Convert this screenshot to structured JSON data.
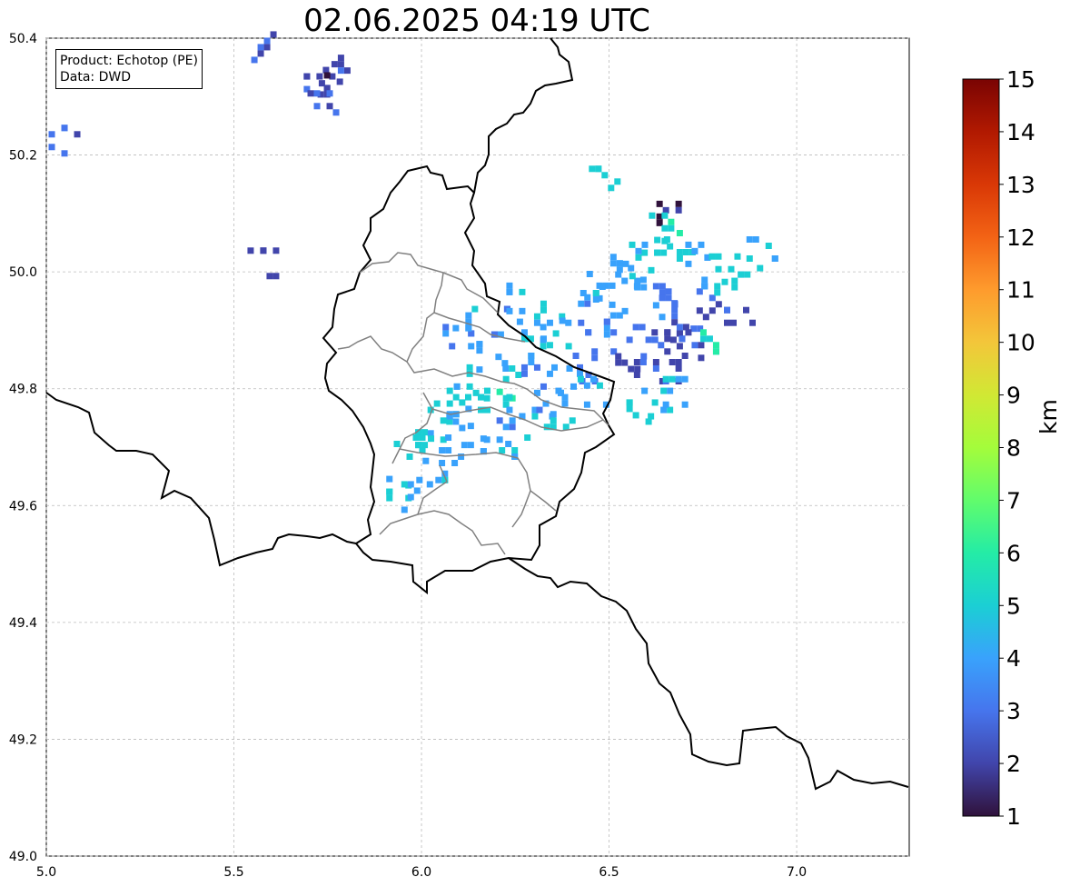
{
  "map": {
    "title": "02.06.2025 04:19 UTC",
    "info": {
      "product": "Product: Echotop (PE)",
      "source": "Data: DWD"
    },
    "x_ticks": [
      "5.0",
      "5.5",
      "6.0",
      "6.5",
      "7.0"
    ],
    "y_ticks": [
      "50.4",
      "50.2",
      "50.0",
      "49.8",
      "49.6",
      "49.4",
      "49.2",
      "49.0"
    ],
    "extent": {
      "lon_min": 5.0,
      "lon_max": 7.3,
      "lat_min": 49.0,
      "lat_max": 50.4
    },
    "gridlines": true,
    "colorbar": {
      "label": "km",
      "ticks": [
        "1",
        "2",
        "3",
        "4",
        "5",
        "6",
        "7",
        "8",
        "9",
        "10",
        "11",
        "12",
        "13",
        "14",
        "15"
      ],
      "min": 1,
      "max": 15,
      "colors": [
        "#30123b",
        "#4145ab",
        "#4675ed",
        "#39a2fc",
        "#1bcfd4",
        "#24eca6",
        "#61fc6c",
        "#a4fc3b",
        "#d1e834",
        "#f3c63a",
        "#fe9b2d",
        "#f36315",
        "#d93806",
        "#b11901",
        "#7a0403"
      ]
    },
    "radar_cells": [
      {
        "lon": 5.58,
        "lat": 50.39,
        "km": 2.5
      },
      {
        "lon": 5.72,
        "lat": 50.34,
        "km": 2.2
      },
      {
        "lon": 5.76,
        "lat": 50.35,
        "km": 2.4
      },
      {
        "lon": 5.74,
        "lat": 50.32,
        "km": 2.0
      },
      {
        "lon": 5.73,
        "lat": 50.3,
        "km": 2.3
      },
      {
        "lon": 5.04,
        "lat": 50.23,
        "km": 3.0
      },
      {
        "lon": 5.57,
        "lat": 50.02,
        "km": 2.4
      },
      {
        "lon": 6.66,
        "lat": 50.1,
        "km": 1.2
      },
      {
        "lon": 6.48,
        "lat": 50.16,
        "km": 4.9
      },
      {
        "lon": 6.62,
        "lat": 50.06,
        "km": 4.5
      },
      {
        "lon": 6.68,
        "lat": 50.05,
        "km": 5.0
      },
      {
        "lon": 6.72,
        "lat": 50.03,
        "km": 4.3
      },
      {
        "lon": 6.8,
        "lat": 50.01,
        "km": 5.2
      },
      {
        "lon": 6.86,
        "lat": 49.99,
        "km": 4.8
      },
      {
        "lon": 6.9,
        "lat": 50.05,
        "km": 4.6
      },
      {
        "lon": 6.55,
        "lat": 49.99,
        "km": 4.0
      },
      {
        "lon": 6.6,
        "lat": 49.97,
        "km": 3.8
      },
      {
        "lon": 6.65,
        "lat": 49.95,
        "km": 3.2
      },
      {
        "lon": 6.7,
        "lat": 49.93,
        "km": 2.6
      },
      {
        "lon": 6.75,
        "lat": 49.95,
        "km": 2.9
      },
      {
        "lon": 6.78,
        "lat": 49.97,
        "km": 4.4
      },
      {
        "lon": 6.68,
        "lat": 49.9,
        "km": 2.2
      },
      {
        "lon": 6.63,
        "lat": 49.88,
        "km": 2.5
      },
      {
        "lon": 6.58,
        "lat": 49.9,
        "km": 3.0
      },
      {
        "lon": 6.52,
        "lat": 49.92,
        "km": 3.6
      },
      {
        "lon": 6.47,
        "lat": 49.88,
        "km": 3.3
      },
      {
        "lon": 6.55,
        "lat": 49.85,
        "km": 2.1
      },
      {
        "lon": 6.6,
        "lat": 49.84,
        "km": 2.4
      },
      {
        "lon": 6.66,
        "lat": 49.84,
        "km": 2.0
      },
      {
        "lon": 6.72,
        "lat": 49.88,
        "km": 2.7
      },
      {
        "lon": 6.5,
        "lat": 49.96,
        "km": 4.1
      },
      {
        "lon": 6.44,
        "lat": 49.98,
        "km": 4.2
      },
      {
        "lon": 6.4,
        "lat": 49.94,
        "km": 4.0
      },
      {
        "lon": 6.35,
        "lat": 49.9,
        "km": 4.3
      },
      {
        "lon": 6.3,
        "lat": 49.88,
        "km": 4.6
      },
      {
        "lon": 6.25,
        "lat": 49.84,
        "km": 4.8
      },
      {
        "lon": 6.2,
        "lat": 49.8,
        "km": 5.2
      },
      {
        "lon": 6.15,
        "lat": 49.78,
        "km": 5.0
      },
      {
        "lon": 6.1,
        "lat": 49.76,
        "km": 4.2
      },
      {
        "lon": 6.05,
        "lat": 49.74,
        "km": 4.6
      },
      {
        "lon": 6.0,
        "lat": 49.72,
        "km": 5.1
      },
      {
        "lon": 5.96,
        "lat": 49.7,
        "km": 4.8
      },
      {
        "lon": 6.08,
        "lat": 49.7,
        "km": 3.9
      },
      {
        "lon": 6.14,
        "lat": 49.72,
        "km": 4.1
      },
      {
        "lon": 6.2,
        "lat": 49.74,
        "km": 3.7
      },
      {
        "lon": 6.26,
        "lat": 49.78,
        "km": 4.4
      },
      {
        "lon": 6.3,
        "lat": 49.82,
        "km": 3.4
      },
      {
        "lon": 6.34,
        "lat": 49.78,
        "km": 3.8
      },
      {
        "lon": 6.38,
        "lat": 49.82,
        "km": 4.0
      },
      {
        "lon": 6.42,
        "lat": 49.84,
        "km": 3.5
      },
      {
        "lon": 6.45,
        "lat": 49.8,
        "km": 4.2
      },
      {
        "lon": 6.09,
        "lat": 49.9,
        "km": 3.2
      },
      {
        "lon": 6.1,
        "lat": 49.92,
        "km": 4.0
      },
      {
        "lon": 6.22,
        "lat": 49.92,
        "km": 3.5
      },
      {
        "lon": 6.26,
        "lat": 49.96,
        "km": 4.3
      },
      {
        "lon": 6.3,
        "lat": 49.94,
        "km": 4.5
      },
      {
        "lon": 6.18,
        "lat": 49.86,
        "km": 4.1
      },
      {
        "lon": 6.12,
        "lat": 49.82,
        "km": 4.6
      },
      {
        "lon": 6.05,
        "lat": 49.78,
        "km": 4.9
      },
      {
        "lon": 6.02,
        "lat": 49.66,
        "km": 4.4
      },
      {
        "lon": 5.94,
        "lat": 49.64,
        "km": 5.0
      },
      {
        "lon": 5.98,
        "lat": 49.62,
        "km": 4.2
      },
      {
        "lon": 6.58,
        "lat": 49.76,
        "km": 5.1
      },
      {
        "lon": 6.62,
        "lat": 49.78,
        "km": 4.7
      },
      {
        "lon": 6.66,
        "lat": 49.8,
        "km": 4.8
      },
      {
        "lon": 6.76,
        "lat": 49.88,
        "km": 5.3
      },
      {
        "lon": 6.84,
        "lat": 49.94,
        "km": 2.3
      },
      {
        "lon": 6.36,
        "lat": 49.74,
        "km": 4.9
      },
      {
        "lon": 6.24,
        "lat": 49.7,
        "km": 4.8
      },
      {
        "lon": 6.57,
        "lat": 50.03,
        "km": 4.4
      },
      {
        "lon": 6.64,
        "lat": 50.08,
        "km": 5.2
      },
      {
        "lon": 6.52,
        "lat": 50.02,
        "km": 4.5
      }
    ]
  }
}
